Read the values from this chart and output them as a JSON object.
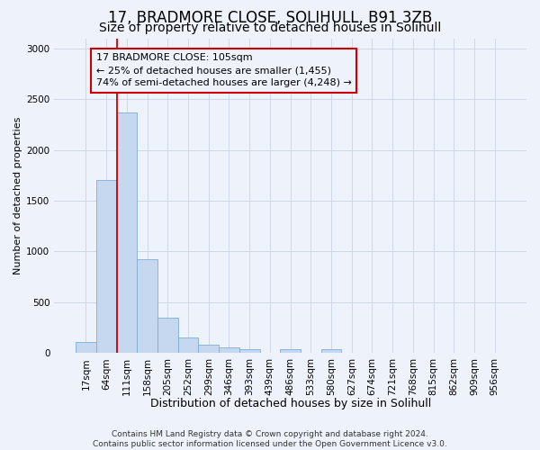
{
  "title": "17, BRADMORE CLOSE, SOLIHULL, B91 3ZB",
  "subtitle": "Size of property relative to detached houses in Solihull",
  "xlabel": "Distribution of detached houses by size in Solihull",
  "ylabel": "Number of detached properties",
  "categories": [
    "17sqm",
    "64sqm",
    "111sqm",
    "158sqm",
    "205sqm",
    "252sqm",
    "299sqm",
    "346sqm",
    "393sqm",
    "439sqm",
    "486sqm",
    "533sqm",
    "580sqm",
    "627sqm",
    "674sqm",
    "721sqm",
    "768sqm",
    "815sqm",
    "862sqm",
    "909sqm",
    "956sqm"
  ],
  "values": [
    110,
    1700,
    2370,
    920,
    350,
    150,
    80,
    55,
    35,
    0,
    35,
    0,
    35,
    0,
    0,
    0,
    0,
    0,
    0,
    0,
    0
  ],
  "bar_color": "#c5d8f0",
  "bar_edge_color": "#7bafd4",
  "grid_color": "#d0d8e8",
  "background_color": "#eef2fa",
  "vline_color": "#cc0000",
  "vline_x_index": 2,
  "annotation_line1": "17 BRADMORE CLOSE: 105sqm",
  "annotation_line2": "← 25% of detached houses are smaller (1,455)",
  "annotation_line3": "74% of semi-detached houses are larger (4,248) →",
  "annotation_box_edgecolor": "#cc0000",
  "annotation_box_facecolor": "#eef2fa",
  "ylim": [
    0,
    3100
  ],
  "yticks": [
    0,
    500,
    1000,
    1500,
    2000,
    2500,
    3000
  ],
  "footer_line1": "Contains HM Land Registry data © Crown copyright and database right 2024.",
  "footer_line2": "Contains public sector information licensed under the Open Government Licence v3.0.",
  "title_fontsize": 12,
  "subtitle_fontsize": 10,
  "ylabel_fontsize": 8,
  "xlabel_fontsize": 9,
  "tick_fontsize": 7.5,
  "footer_fontsize": 6.5,
  "annotation_fontsize": 8
}
